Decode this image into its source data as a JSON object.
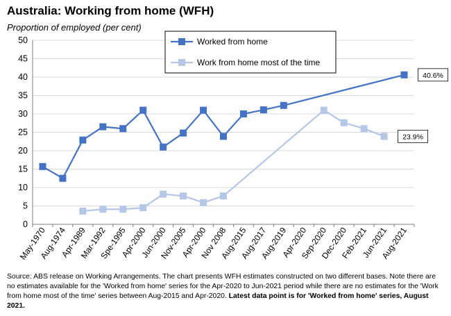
{
  "title": "Australia: Working from home (WFH)",
  "subtitle": "Proportion of employed (per cent)",
  "source_text": "Source: ABS release on Working Arrangements.  The chart presents WFH estimates constructed on two different bases. Note there are no estimates available for the 'Worked from home' series for the Apr-2020 to Jun-2021 period while there are no estimates for the 'Work from home most of the time' series between Aug-2015 and Apr-2020.",
  "source_note": "Latest data point is for 'Worked from home' series, August 2021.",
  "chart_data": {
    "type": "line",
    "categories": [
      "May-1970",
      "Aug-1974",
      "Apr-1989",
      "Mar-1992",
      "Spe-1995",
      "Apr-2000",
      "Jun-2000",
      "Nov-2005",
      "Apr-2000",
      "Nov 2008",
      "Aug-2015",
      "Aug-2017",
      "Aug-2019",
      "Apr-2020",
      "Sep-2020",
      "Dec-2020",
      "Feb-2021",
      "Jun-2021",
      "Aug-2021"
    ],
    "ylim": [
      0,
      50
    ],
    "yticks": [
      0,
      5,
      10,
      15,
      20,
      25,
      30,
      35,
      40,
      45,
      50
    ],
    "grid": true,
    "legend_position": "top-center",
    "series": [
      {
        "name": "Worked from home",
        "color": "#4472c4",
        "values": [
          15.7,
          12.5,
          22.9,
          26.5,
          26.0,
          31.0,
          21.0,
          24.8,
          31.0,
          23.9,
          30.0,
          31.1,
          32.3,
          null,
          null,
          null,
          null,
          null,
          40.6
        ]
      },
      {
        "name": "Work from home most of the time",
        "color": "#b4c7e7",
        "values": [
          null,
          null,
          3.6,
          4.1,
          4.1,
          4.5,
          8.2,
          7.7,
          5.9,
          7.7,
          null,
          null,
          null,
          null,
          31.0,
          27.6,
          26.0,
          23.9,
          null
        ]
      }
    ],
    "callouts": [
      {
        "series": 0,
        "index": 18,
        "text": "40.6%"
      },
      {
        "series": 1,
        "index": 17,
        "text": "23.9%"
      }
    ]
  }
}
